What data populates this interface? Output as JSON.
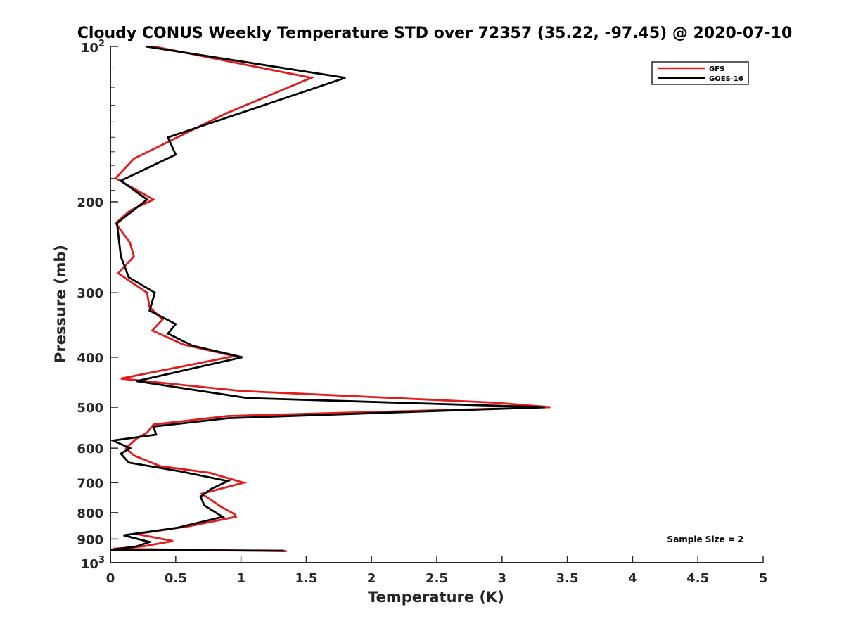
{
  "chart_data": {
    "type": "line",
    "title": "Cloudy CONUS Weekly Temperature STD over 72357 (35.22, -97.45) @ 2020-07-10",
    "xlabel": "Temperature (K)",
    "ylabel": "Pressure (mb)",
    "xlim": [
      0,
      5
    ],
    "ylim": [
      100,
      1000
    ],
    "yscale": "log",
    "y_reversed": true,
    "grid": false,
    "legend_position": "top-right",
    "x_ticks": [
      0,
      0.5,
      1,
      1.5,
      2,
      2.5,
      3,
      3.5,
      4,
      4.5,
      5
    ],
    "x_tick_labels": [
      "0",
      "0.5",
      "1",
      "1.5",
      "2",
      "2.5",
      "3",
      "3.5",
      "4",
      "4.5",
      "5"
    ],
    "y_ticks": [
      {
        "value": 100,
        "base": "10",
        "exp": "2"
      },
      {
        "value": 200,
        "label": "200"
      },
      {
        "value": 300,
        "label": "300"
      },
      {
        "value": 400,
        "label": "400"
      },
      {
        "value": 500,
        "label": "500"
      },
      {
        "value": 600,
        "label": "600"
      },
      {
        "value": 700,
        "label": "700"
      },
      {
        "value": 800,
        "label": "800"
      },
      {
        "value": 900,
        "label": "900"
      },
      {
        "value": 1000,
        "base": "10",
        "exp": "3"
      }
    ],
    "annotation": "Sample Size = 2",
    "series": [
      {
        "name": "GFS",
        "color": "#e41a1c",
        "points": [
          [
            0.33,
            100
          ],
          [
            1.54,
            115
          ],
          [
            0.88,
            135
          ],
          [
            0.18,
            165
          ],
          [
            0.04,
            180
          ],
          [
            0.33,
            198
          ],
          [
            0.15,
            208
          ],
          [
            0.04,
            220
          ],
          [
            0.15,
            240
          ],
          [
            0.18,
            255
          ],
          [
            0.06,
            275
          ],
          [
            0.28,
            300
          ],
          [
            0.3,
            320
          ],
          [
            0.4,
            338
          ],
          [
            0.32,
            355
          ],
          [
            0.56,
            378
          ],
          [
            0.95,
            398
          ],
          [
            0.08,
            440
          ],
          [
            1.0,
            465
          ],
          [
            2.95,
            490
          ],
          [
            3.37,
            500
          ],
          [
            0.9,
            520
          ],
          [
            0.33,
            540
          ],
          [
            0.28,
            560
          ],
          [
            0.2,
            575
          ],
          [
            0.12,
            600
          ],
          [
            0.18,
            620
          ],
          [
            0.38,
            650
          ],
          [
            0.76,
            670
          ],
          [
            1.02,
            700
          ],
          [
            0.7,
            735
          ],
          [
            0.85,
            780
          ],
          [
            0.95,
            805
          ],
          [
            0.96,
            815
          ],
          [
            0.6,
            850
          ],
          [
            0.2,
            880
          ],
          [
            0.48,
            908
          ],
          [
            0.25,
            930
          ],
          [
            0.02,
            940
          ],
          [
            1.35,
            950
          ]
        ]
      },
      {
        "name": "GOES-16",
        "color": "#000000",
        "points": [
          [
            0.27,
            100
          ],
          [
            1.8,
            115
          ],
          [
            0.44,
            150
          ],
          [
            0.5,
            162
          ],
          [
            0.08,
            182
          ],
          [
            0.28,
            198
          ],
          [
            0.05,
            220
          ],
          [
            0.08,
            255
          ],
          [
            0.14,
            280
          ],
          [
            0.34,
            300
          ],
          [
            0.3,
            325
          ],
          [
            0.5,
            345
          ],
          [
            0.44,
            360
          ],
          [
            0.63,
            380
          ],
          [
            1.01,
            400
          ],
          [
            0.2,
            445
          ],
          [
            1.05,
            480
          ],
          [
            3.33,
            500
          ],
          [
            0.9,
            525
          ],
          [
            0.33,
            545
          ],
          [
            0.35,
            565
          ],
          [
            0.02,
            580
          ],
          [
            0.15,
            600
          ],
          [
            0.08,
            615
          ],
          [
            0.14,
            640
          ],
          [
            0.53,
            665
          ],
          [
            0.9,
            695
          ],
          [
            0.77,
            720
          ],
          [
            0.69,
            745
          ],
          [
            0.72,
            775
          ],
          [
            0.86,
            815
          ],
          [
            0.52,
            855
          ],
          [
            0.1,
            885
          ],
          [
            0.3,
            912
          ],
          [
            0.2,
            930
          ],
          [
            0.0,
            945
          ],
          [
            1.33,
            948
          ]
        ]
      }
    ]
  }
}
